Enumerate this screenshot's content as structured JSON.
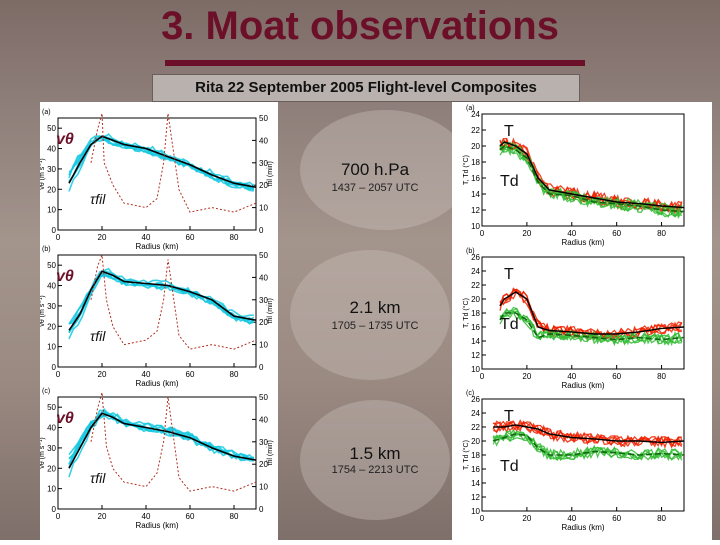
{
  "title": "3. Moat observations",
  "subtitle": "Rita 22 September  2005 Flight-level Composites",
  "colors": {
    "title": "#6b1028",
    "vt": "#16c8e0",
    "vt_mean": "#000000",
    "tfil": "#b03020",
    "temp": "#ee2200",
    "dew": "#33bb33",
    "dew_mean": "#116611"
  },
  "panels": [
    {
      "level": "700 h.Pa",
      "time": "1437 – 2057 UTC",
      "left_tag": "(a)",
      "right_tag": "(a)",
      "left_labels": {
        "vt": "vθ",
        "tfil": "τfil"
      },
      "right_labels": {
        "T": "T",
        "Td": "Td"
      }
    },
    {
      "level": "2.1 km",
      "time": "1705 – 1735 UTC",
      "left_tag": "(b)",
      "right_tag": "(b)",
      "left_labels": {
        "vt": "vθ",
        "tfil": "τfil"
      },
      "right_labels": {
        "T": "T",
        "Td": "Td"
      }
    },
    {
      "level": "1.5 km",
      "time": "1754 – 2213 UTC",
      "left_tag": "(c)",
      "right_tag": "(c)",
      "left_labels": {
        "vt": "vθ",
        "tfil": "τfil"
      },
      "right_labels": {
        "T": "T",
        "Td": "Td"
      }
    }
  ],
  "chart_data": [
    {
      "type": "line",
      "panel": "a-left",
      "title": "",
      "xlabel": "Radius (km)",
      "ylabel": "vθ (m s⁻¹)",
      "y2label": "τfil (min)",
      "xlim": [
        0,
        90
      ],
      "ylim": [
        0,
        55
      ],
      "y2lim": [
        0,
        50
      ],
      "xticks": [
        0,
        20,
        40,
        60,
        80
      ],
      "yticks": [
        0,
        10,
        20,
        30,
        40,
        50
      ],
      "y2ticks": [
        0,
        10,
        20,
        30,
        40,
        50
      ],
      "series": [
        {
          "name": "vθ mean",
          "x": [
            5,
            10,
            15,
            20,
            25,
            30,
            40,
            50,
            60,
            70,
            80,
            90
          ],
          "values": [
            23,
            33,
            42,
            46,
            44,
            42,
            40,
            36,
            32,
            27,
            23,
            21
          ]
        },
        {
          "name": "τfil",
          "x": [
            15,
            18,
            20,
            21,
            25,
            30,
            40,
            45,
            48,
            50,
            55,
            60,
            70,
            80,
            90
          ],
          "values": [
            30,
            45,
            52,
            30,
            20,
            12,
            10,
            14,
            30,
            52,
            18,
            8,
            10,
            8,
            12
          ]
        }
      ]
    },
    {
      "type": "line",
      "panel": "a-right",
      "xlabel": "Radius (km)",
      "ylabel": "T, Td (°C)",
      "xlim": [
        0,
        90
      ],
      "ylim": [
        10,
        24
      ],
      "xticks": [
        0,
        20,
        40,
        60,
        80
      ],
      "yticks": [
        10,
        12,
        14,
        16,
        18,
        20,
        22,
        24
      ],
      "series": [
        {
          "name": "T",
          "x": [
            8,
            10,
            15,
            20,
            25,
            30,
            40,
            50,
            60,
            70,
            80,
            90
          ],
          "values": [
            20,
            20.5,
            20,
            19,
            16,
            14.5,
            14,
            13.5,
            13,
            12.8,
            12.5,
            12.3
          ]
        },
        {
          "name": "Td",
          "x": [
            8,
            10,
            15,
            20,
            25,
            30,
            40,
            50,
            60,
            70,
            80,
            90
          ],
          "values": [
            19.5,
            20,
            19.5,
            18.5,
            15.5,
            14,
            13.8,
            13,
            12.8,
            12.5,
            12,
            11.8
          ]
        }
      ]
    },
    {
      "type": "line",
      "panel": "b-left",
      "xlabel": "Radius (km)",
      "ylabel": "vθ (m s⁻¹)",
      "y2label": "τfil (min)",
      "xlim": [
        0,
        90
      ],
      "ylim": [
        0,
        55
      ],
      "y2lim": [
        0,
        50
      ],
      "xticks": [
        0,
        20,
        40,
        60,
        80
      ],
      "yticks": [
        0,
        10,
        20,
        30,
        40,
        50
      ],
      "y2ticks": [
        0,
        10,
        20,
        30,
        40,
        50
      ],
      "series": [
        {
          "name": "vθ mean",
          "x": [
            5,
            10,
            15,
            20,
            25,
            30,
            40,
            50,
            60,
            70,
            80,
            90
          ],
          "values": [
            18,
            26,
            38,
            47,
            45,
            42,
            41,
            40,
            37,
            33,
            25,
            23
          ]
        },
        {
          "name": "τfil",
          "x": [
            15,
            18,
            20,
            22,
            25,
            30,
            40,
            45,
            48,
            50,
            55,
            60,
            70,
            80,
            90
          ],
          "values": [
            30,
            45,
            50,
            30,
            18,
            10,
            12,
            16,
            30,
            48,
            14,
            8,
            10,
            8,
            12
          ]
        }
      ]
    },
    {
      "type": "line",
      "panel": "b-right",
      "xlabel": "Radius (km)",
      "ylabel": "T, Td (°C)",
      "xlim": [
        0,
        90
      ],
      "ylim": [
        10,
        26
      ],
      "xticks": [
        0,
        20,
        40,
        60,
        80
      ],
      "yticks": [
        10,
        12,
        14,
        16,
        18,
        20,
        22,
        24,
        26
      ],
      "series": [
        {
          "name": "T",
          "x": [
            8,
            10,
            15,
            20,
            25,
            30,
            40,
            50,
            60,
            70,
            80,
            90
          ],
          "values": [
            19,
            20,
            21,
            20,
            16,
            15.5,
            15.3,
            15,
            15,
            15.3,
            15.8,
            16
          ]
        },
        {
          "name": "Td",
          "x": [
            8,
            10,
            15,
            20,
            25,
            30,
            40,
            50,
            60,
            70,
            80,
            90
          ],
          "values": [
            17,
            18,
            18,
            17,
            14.5,
            15,
            14.8,
            14.5,
            14.2,
            14.5,
            14.2,
            14.5
          ]
        }
      ]
    },
    {
      "type": "line",
      "panel": "c-left",
      "xlabel": "Radius (km)",
      "ylabel": "vθ (m s⁻¹)",
      "y2label": "τfil (min)",
      "xlim": [
        0,
        90
      ],
      "ylim": [
        0,
        55
      ],
      "y2lim": [
        0,
        50
      ],
      "xticks": [
        0,
        20,
        40,
        60,
        80
      ],
      "yticks": [
        0,
        10,
        20,
        30,
        40,
        50
      ],
      "y2ticks": [
        0,
        10,
        20,
        30,
        40,
        50
      ],
      "series": [
        {
          "name": "vθ mean",
          "x": [
            5,
            10,
            15,
            20,
            25,
            30,
            40,
            50,
            60,
            70,
            80,
            90
          ],
          "values": [
            20,
            30,
            40,
            47,
            45,
            42,
            40,
            38,
            35,
            30,
            26,
            24
          ]
        },
        {
          "name": "τfil",
          "x": [
            15,
            18,
            20,
            22,
            25,
            30,
            40,
            45,
            48,
            50,
            55,
            60,
            70,
            80,
            90
          ],
          "values": [
            30,
            45,
            52,
            28,
            18,
            12,
            10,
            16,
            30,
            50,
            14,
            8,
            10,
            8,
            12
          ]
        }
      ]
    },
    {
      "type": "line",
      "panel": "c-right",
      "xlabel": "Radius (km)",
      "ylabel": "T, Td (°C)",
      "xlim": [
        0,
        90
      ],
      "ylim": [
        10,
        26
      ],
      "xticks": [
        0,
        20,
        40,
        60,
        80
      ],
      "yticks": [
        10,
        12,
        14,
        16,
        18,
        20,
        22,
        24,
        26
      ],
      "series": [
        {
          "name": "T",
          "x": [
            5,
            10,
            15,
            20,
            25,
            30,
            40,
            50,
            60,
            70,
            80,
            90
          ],
          "values": [
            22,
            22,
            22.3,
            22,
            21.7,
            21,
            20.5,
            20.3,
            20,
            20,
            19.8,
            20
          ]
        },
        {
          "name": "Td",
          "x": [
            5,
            10,
            15,
            20,
            25,
            30,
            40,
            50,
            60,
            70,
            80,
            90
          ],
          "values": [
            20,
            20.5,
            21,
            20.8,
            19,
            18,
            18,
            18.5,
            18.3,
            18,
            18.2,
            18
          ]
        }
      ]
    }
  ]
}
